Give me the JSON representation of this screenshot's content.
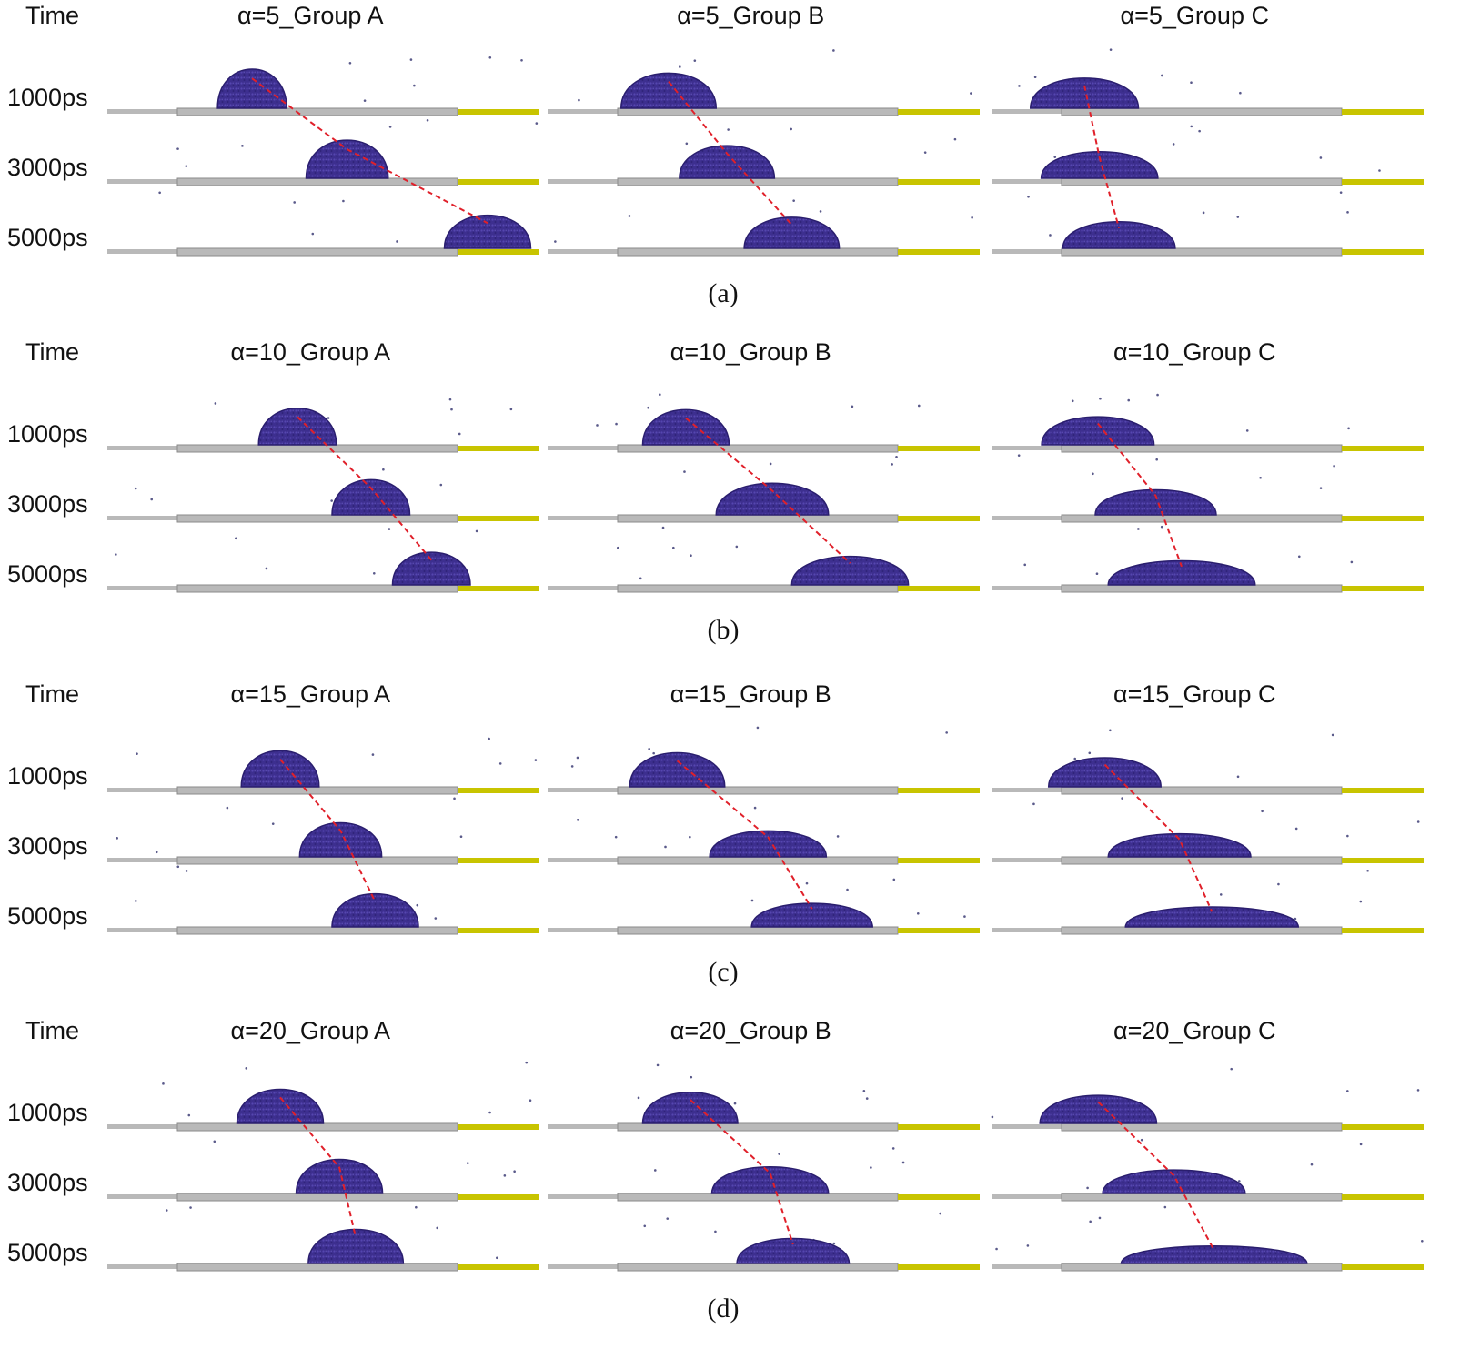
{
  "figure": {
    "time_header": "Time",
    "time_labels": [
      "1000ps",
      "3000ps",
      "5000ps"
    ],
    "colors": {
      "droplet": "#3d2f8f",
      "droplet_edge": "#2a1e6e",
      "substrate": "#b9b9b9",
      "substrate_edge": "#8a8a8a",
      "hydrophobic_strip": "#c8c400",
      "trajectory": "#e0202a"
    },
    "panels": [
      {
        "caption": "(a)",
        "groups": [
          {
            "title": "α=5_Group A",
            "droplets": [
              {
                "pos": 0.335,
                "width": 0.16,
                "height": 0.78
              },
              {
                "pos": 0.555,
                "width": 0.19,
                "height": 0.76
              },
              {
                "pos": 0.88,
                "width": 0.2,
                "height": 0.66
              }
            ]
          },
          {
            "title": "α=5_Group B",
            "droplets": [
              {
                "pos": 0.28,
                "width": 0.22,
                "height": 0.7
              },
              {
                "pos": 0.415,
                "width": 0.22,
                "height": 0.65
              },
              {
                "pos": 0.565,
                "width": 0.22,
                "height": 0.62
              }
            ]
          },
          {
            "title": "α=5_Group C",
            "droplets": [
              {
                "pos": 0.215,
                "width": 0.25,
                "height": 0.6
              },
              {
                "pos": 0.25,
                "width": 0.27,
                "height": 0.53
              },
              {
                "pos": 0.295,
                "width": 0.26,
                "height": 0.53
              }
            ]
          }
        ]
      },
      {
        "caption": "(b)",
        "groups": [
          {
            "title": "α=10_Group A",
            "droplets": [
              {
                "pos": 0.44,
                "width": 0.18,
                "height": 0.73
              },
              {
                "pos": 0.61,
                "width": 0.18,
                "height": 0.7
              },
              {
                "pos": 0.75,
                "width": 0.18,
                "height": 0.65
              }
            ]
          },
          {
            "title": "α=10_Group B",
            "droplets": [
              {
                "pos": 0.32,
                "width": 0.2,
                "height": 0.7
              },
              {
                "pos": 0.52,
                "width": 0.26,
                "height": 0.63
              },
              {
                "pos": 0.7,
                "width": 0.27,
                "height": 0.57
              }
            ]
          },
          {
            "title": "α=10_Group C",
            "droplets": [
              {
                "pos": 0.246,
                "width": 0.26,
                "height": 0.56
              },
              {
                "pos": 0.38,
                "width": 0.28,
                "height": 0.5
              },
              {
                "pos": 0.44,
                "width": 0.34,
                "height": 0.48
              }
            ]
          }
        ]
      },
      {
        "caption": "(c)",
        "groups": [
          {
            "title": "α=15_Group A",
            "droplets": [
              {
                "pos": 0.4,
                "width": 0.18,
                "height": 0.72
              },
              {
                "pos": 0.54,
                "width": 0.19,
                "height": 0.68
              },
              {
                "pos": 0.62,
                "width": 0.2,
                "height": 0.66
              }
            ]
          },
          {
            "title": "α=15_Group B",
            "droplets": [
              {
                "pos": 0.3,
                "width": 0.22,
                "height": 0.68
              },
              {
                "pos": 0.51,
                "width": 0.27,
                "height": 0.52
              },
              {
                "pos": 0.612,
                "width": 0.28,
                "height": 0.47
              }
            ]
          },
          {
            "title": "α=15_Group C",
            "droplets": [
              {
                "pos": 0.262,
                "width": 0.26,
                "height": 0.58
              },
              {
                "pos": 0.435,
                "width": 0.33,
                "height": 0.46
              },
              {
                "pos": 0.51,
                "width": 0.4,
                "height": 0.4
              }
            ]
          }
        ]
      },
      {
        "caption": "(d)",
        "groups": [
          {
            "title": "α=20_Group A",
            "droplets": [
              {
                "pos": 0.4,
                "width": 0.2,
                "height": 0.68
              },
              {
                "pos": 0.537,
                "width": 0.2,
                "height": 0.68
              },
              {
                "pos": 0.575,
                "width": 0.22,
                "height": 0.68
              }
            ]
          },
          {
            "title": "α=20_Group B",
            "droplets": [
              {
                "pos": 0.33,
                "width": 0.22,
                "height": 0.62
              },
              {
                "pos": 0.515,
                "width": 0.27,
                "height": 0.53
              },
              {
                "pos": 0.568,
                "width": 0.26,
                "height": 0.5
              }
            ]
          },
          {
            "title": "α=20_Group C",
            "droplets": [
              {
                "pos": 0.247,
                "width": 0.27,
                "height": 0.56
              },
              {
                "pos": 0.422,
                "width": 0.33,
                "height": 0.47
              },
              {
                "pos": 0.515,
                "width": 0.43,
                "height": 0.35
              }
            ]
          }
        ]
      }
    ]
  }
}
